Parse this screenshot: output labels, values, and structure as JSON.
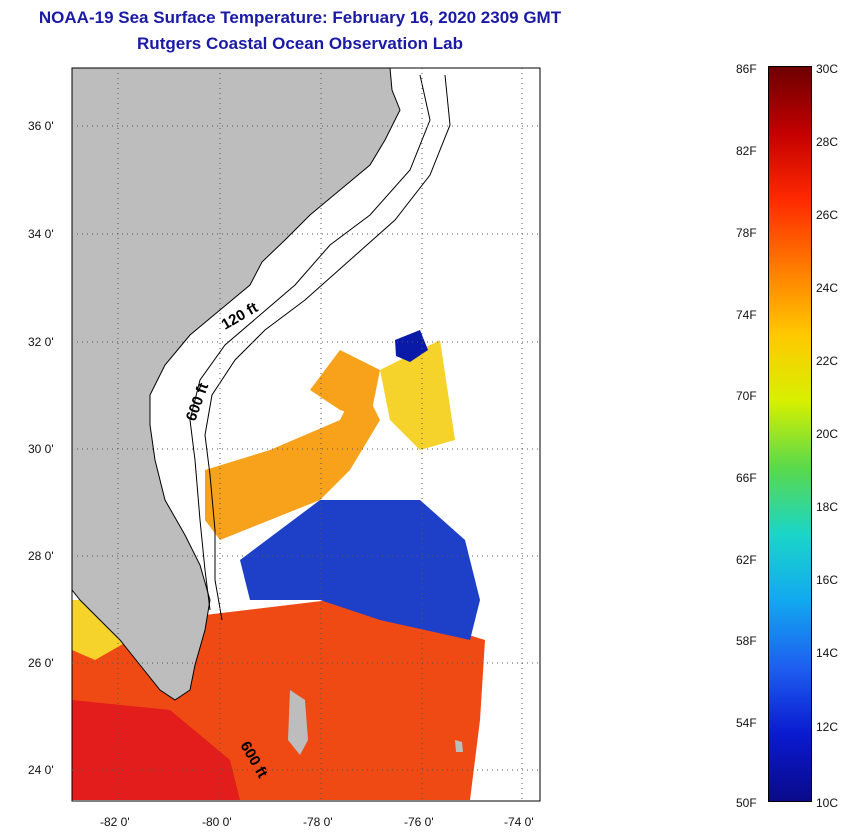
{
  "title": {
    "line1": "NOAA-19 Sea Surface Temperature:  February 16, 2020 2309 GMT",
    "line2": "Rutgers Coastal Ocean Observation Lab"
  },
  "map": {
    "lat_labels": [
      "36 0'",
      "34 0'",
      "32 0'",
      "30 0'",
      "28 0'",
      "26 0'",
      "24 0'"
    ],
    "lon_labels": [
      "-82 0'",
      "-80 0'",
      "-78 0'",
      "-76 0'",
      "-74 0'"
    ],
    "contour_labels": [
      "120 ft",
      "600 ft",
      "600 ft"
    ],
    "colors": {
      "land": "#bdbdbd",
      "cloud": "#ffffff",
      "warm": "#f04a14",
      "hot": "#e31c1c",
      "mid": "#f7a21a",
      "cool": "#f5d32a",
      "cold": "#1e3fc8",
      "colder": "#0a1aa8"
    }
  },
  "colorbar": {
    "fahrenheit_labels": [
      "86F",
      "82F",
      "78F",
      "74F",
      "70F",
      "66F",
      "62F",
      "58F",
      "54F",
      "50F"
    ],
    "celsius_labels": [
      "30C",
      "28C",
      "26C",
      "24C",
      "22C",
      "20C",
      "18C",
      "16C",
      "14C",
      "12C",
      "10C"
    ],
    "gradient_colors": [
      "#6e0000",
      "#c40000",
      "#ff2a00",
      "#ff7a00",
      "#ffc800",
      "#d8f000",
      "#5ad94a",
      "#1ad6c8",
      "#12a8f0",
      "#1e5ef0",
      "#0a1ad0",
      "#0a0a8a"
    ]
  }
}
